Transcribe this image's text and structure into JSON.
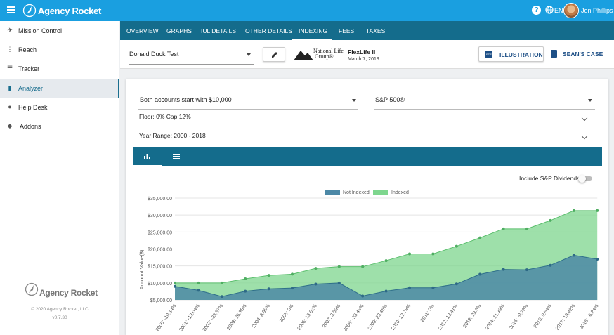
{
  "app": {
    "brand": "Agency Rocket",
    "language": "EN",
    "user_name": "Jon Phillips",
    "help_symbol": "?"
  },
  "sidebar": {
    "items": [
      {
        "label": "Mission Control",
        "icon": "rocket-icon"
      },
      {
        "label": "Reach",
        "icon": "signal-icon"
      },
      {
        "label": "Tracker",
        "icon": "tracker-icon"
      },
      {
        "label": "Analyzer",
        "icon": "bar-chart-icon",
        "active": true
      },
      {
        "label": "Help Desk",
        "icon": "help-circle-icon"
      },
      {
        "label": "Addons",
        "icon": "puzzle-icon"
      }
    ],
    "footer_brand": "Agency Rocket",
    "copyright": "© 2020 Agency Rocket, LLC",
    "version": "v0.7.30"
  },
  "tabs": [
    "OVERVIEW",
    "GRAPHS",
    "IUL DETAILS",
    "OTHER DETAILS",
    "INDEXING",
    "FEES",
    "TAXES"
  ],
  "active_tab": "INDEXING",
  "toolbar": {
    "case_name": "Donald Duck Test",
    "carrier_line1": "National Life",
    "carrier_line2": "Group®",
    "product": "FlexLife II",
    "product_date": "March 7, 2019",
    "illustration_label": "ILLUSTRATION",
    "case_label": "SEAN'S CASE"
  },
  "analyzer": {
    "start_option": "Both accounts start with $10,000",
    "index_option": "S&P 500®",
    "floor_cap": "Floor: 0% Cap 12%",
    "year_range": "Year Range: 2000 - 2018",
    "dividends_label": "Include S&P Dividends",
    "dividends_enabled": false
  },
  "colors": {
    "topbar": "#1a9fe0",
    "tabbar": "#146c8c",
    "not_indexed": "#4c88a6",
    "indexed": "#7ed68e"
  },
  "chart_data": {
    "type": "area",
    "ylabel": "Account Value($)",
    "ylim": [
      5000,
      35000
    ],
    "y_ticks": [
      "$5,000.00",
      "$10,000.00",
      "$15,000.00",
      "$20,000.00",
      "$25,000.00",
      "$30,000.00",
      "$35,000.00"
    ],
    "categories": [
      "2000: -10.14%",
      "2001: -13.04%",
      "2002: -23.37%",
      "2003: 26.38%",
      "2004: 8.99%",
      "2005: 3%",
      "2006: 13.62%",
      "2007: 3.53%",
      "2008: -38.49%",
      "2009: 23.45%",
      "2010: 12.78%",
      "2011: 0%",
      "2012: 13.41%",
      "2013: 29.6%",
      "2014: 11.39%",
      "2015: -0.73%",
      "2016: 9.54%",
      "2017: 19.42%",
      "2018: -6.24%"
    ],
    "series": [
      {
        "name": "Not Indexed",
        "values": [
          8990,
          7820,
          5990,
          7570,
          8250,
          8500,
          9650,
          9990,
          6150,
          7590,
          8560,
          8560,
          9700,
          12550,
          13980,
          13880,
          15200,
          18150,
          17010
        ]
      },
      {
        "name": "Indexed",
        "values": [
          10000,
          10000,
          10000,
          11200,
          12210,
          12570,
          14280,
          14790,
          14790,
          16570,
          18560,
          18560,
          20790,
          23280,
          25930,
          25930,
          28400,
          31300,
          31300
        ]
      }
    ],
    "legend": "top-center"
  }
}
